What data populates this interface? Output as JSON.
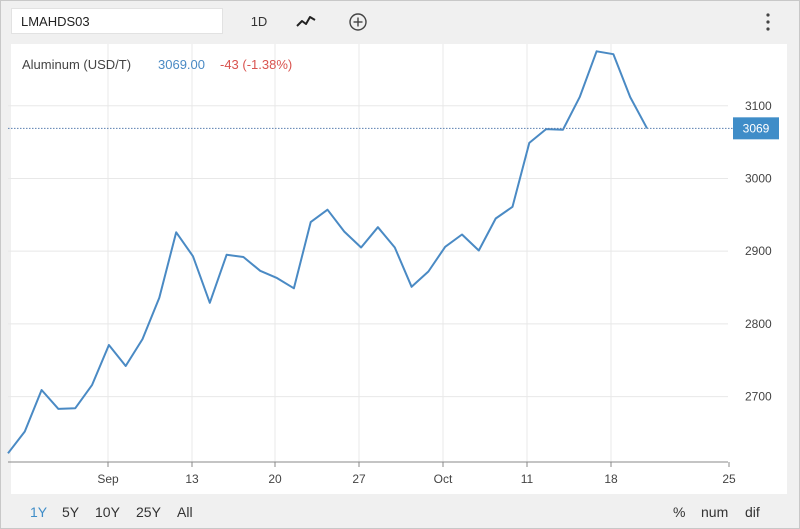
{
  "toolbar": {
    "symbol": "LMAHDS03",
    "period": "1D"
  },
  "legend": {
    "name": "Aluminum (USD/T)",
    "last": "3069.00",
    "change": "-43 (-1.38%)"
  },
  "price_tag": "3069",
  "ranges": [
    "1Y",
    "5Y",
    "10Y",
    "25Y",
    "All"
  ],
  "active_range": "1Y",
  "options": [
    "%",
    "num",
    "dif"
  ],
  "colors": {
    "line": "#4a8ac4",
    "change_negative": "#d9534f",
    "accent": "#3f8dc8",
    "grid": "#e8e8e8"
  },
  "chart_data": {
    "type": "line",
    "title": "",
    "xlabel": "",
    "ylabel": "",
    "x_tick_labels": [
      "Sep",
      "13",
      "20",
      "27",
      "Oct",
      "11",
      "18",
      "25"
    ],
    "y_ticks": [
      2700,
      2800,
      2900,
      3000,
      3100
    ],
    "ylim": [
      2610,
      3185
    ],
    "grid": true,
    "legend_position": "top-left",
    "series": [
      {
        "name": "Aluminum (USD/T)",
        "values": [
          2622,
          2652,
          2709,
          2683,
          2684,
          2716,
          2771,
          2742,
          2779,
          2836,
          2926,
          2893,
          2829,
          2895,
          2892,
          2873,
          2863,
          2849,
          2940,
          2957,
          2927,
          2905,
          2933,
          2905,
          2851,
          2872,
          2906,
          2923,
          2901,
          2945,
          2961,
          3049,
          3068,
          3067,
          3112,
          3175,
          3171,
          3112,
          3069
        ]
      }
    ],
    "last_value": 3069
  }
}
